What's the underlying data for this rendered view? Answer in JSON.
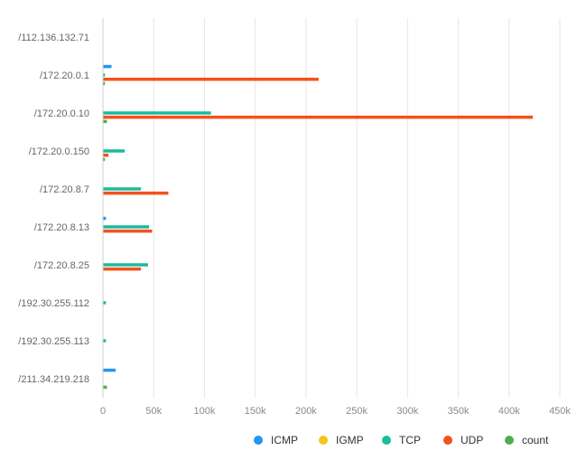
{
  "chart_data": {
    "type": "bar",
    "orientation": "horizontal",
    "categories": [
      "/112.136.132.71",
      "/172.20.0.1",
      "/172.20.0.10",
      "/172.20.0.150",
      "/172.20.8.7",
      "/172.20.8.13",
      "/172.20.8.25",
      "/192.30.255.112",
      "/192.30.255.113",
      "/211.34.219.218"
    ],
    "series": [
      {
        "name": "ICMP",
        "color": "#2196f3",
        "values": [
          0,
          8000,
          0,
          0,
          0,
          2500,
          0,
          0,
          0,
          12000
        ]
      },
      {
        "name": "IGMP",
        "color": "#f5c518",
        "values": [
          0,
          0,
          0,
          0,
          0,
          0,
          0,
          0,
          0,
          0
        ]
      },
      {
        "name": "TCP",
        "color": "#1abc9c",
        "values": [
          0,
          1500,
          106000,
          21000,
          37000,
          45000,
          44000,
          2500,
          2500,
          0
        ]
      },
      {
        "name": "UDP",
        "color": "#f4511e",
        "values": [
          0,
          212000,
          423000,
          5000,
          64000,
          48000,
          37000,
          0,
          0,
          0
        ]
      },
      {
        "name": "count",
        "color": "#4caf50",
        "values": [
          0,
          1500,
          3500,
          1500,
          0,
          0,
          0,
          0,
          0,
          3500
        ]
      }
    ],
    "x_ticks": [
      "0",
      "50k",
      "100k",
      "150k",
      "200k",
      "250k",
      "300k",
      "350k",
      "400k",
      "450k"
    ],
    "xlim": [
      0,
      450000
    ],
    "grid": true,
    "legend_position": "bottom-right"
  }
}
